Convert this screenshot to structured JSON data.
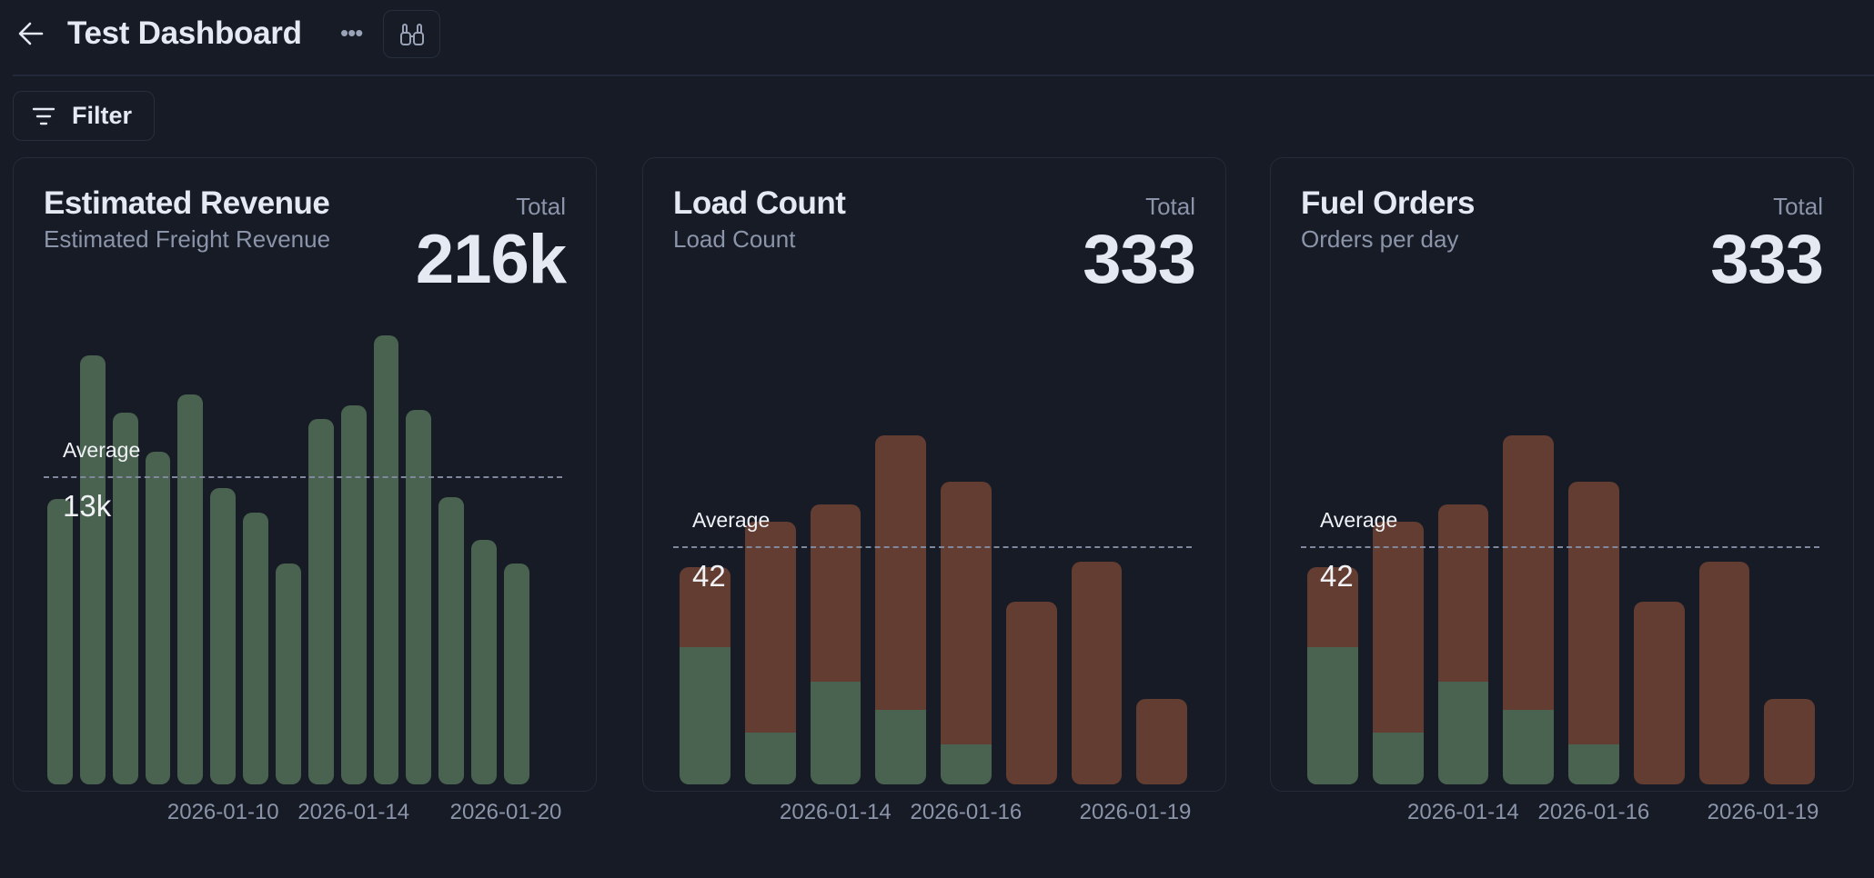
{
  "header": {
    "title": "Test Dashboard",
    "back_icon": "arrow-left-icon",
    "more_label": "•••",
    "explore_icon": "binoculars-icon"
  },
  "toolbar": {
    "filter_label": "Filter",
    "filter_icon": "filter-lines-icon"
  },
  "colors": {
    "background": "#161b26",
    "green": "#4a6350",
    "red": "#633d31"
  },
  "cards": [
    {
      "title": "Estimated Revenue",
      "subtitle": "Estimated Freight Revenue",
      "total_label": "Total",
      "total": "216k",
      "average_label": "Average",
      "average_text": "13k"
    },
    {
      "title": "Load Count",
      "subtitle": "Load Count",
      "total_label": "Total",
      "total": "333",
      "average_label": "Average",
      "average_text": "42"
    },
    {
      "title": "Fuel Orders",
      "subtitle": "Orders per day",
      "total_label": "Total",
      "total": "333",
      "average_label": "Average",
      "average_text": "42"
    }
  ],
  "chart_data": [
    {
      "type": "bar",
      "title": "Estimated Revenue",
      "ylim": [
        0,
        20.8
      ],
      "average": 13.5,
      "x_ticks": [
        {
          "label": "2026-01-10",
          "index": 5
        },
        {
          "label": "2026-01-14",
          "index": 9
        },
        {
          "label": "2026-01-20",
          "index": 14
        }
      ],
      "series": [
        {
          "color": "#4a6350",
          "values": [
            12.5,
            18.8,
            16.3,
            14.6,
            17.1,
            13.0,
            11.9,
            9.7,
            16.0,
            16.6,
            19.7,
            16.4,
            12.6,
            10.7,
            9.7
          ]
        }
      ]
    },
    {
      "type": "bar",
      "stacked": true,
      "title": "Load Count",
      "ylim": [
        0,
        83
      ],
      "average": 41.6,
      "x_ticks": [
        {
          "label": "2026-01-14",
          "index": 2
        },
        {
          "label": "2026-01-16",
          "index": 4
        },
        {
          "label": "2026-01-19",
          "index": 7
        }
      ],
      "series": [
        {
          "color": "#4a6350",
          "values": [
            24,
            9,
            18,
            13,
            7,
            0,
            0,
            0
          ]
        },
        {
          "color": "#633d31",
          "values": [
            14,
            37,
            31,
            48,
            46,
            32,
            39,
            15
          ]
        }
      ]
    },
    {
      "type": "bar",
      "stacked": true,
      "title": "Fuel Orders",
      "ylim": [
        0,
        83
      ],
      "average": 41.6,
      "x_ticks": [
        {
          "label": "2026-01-14",
          "index": 2
        },
        {
          "label": "2026-01-16",
          "index": 4
        },
        {
          "label": "2026-01-19",
          "index": 7
        }
      ],
      "series": [
        {
          "color": "#4a6350",
          "values": [
            24,
            9,
            18,
            13,
            7,
            0,
            0,
            0
          ]
        },
        {
          "color": "#633d31",
          "values": [
            14,
            37,
            31,
            48,
            46,
            32,
            39,
            15
          ]
        }
      ]
    }
  ]
}
